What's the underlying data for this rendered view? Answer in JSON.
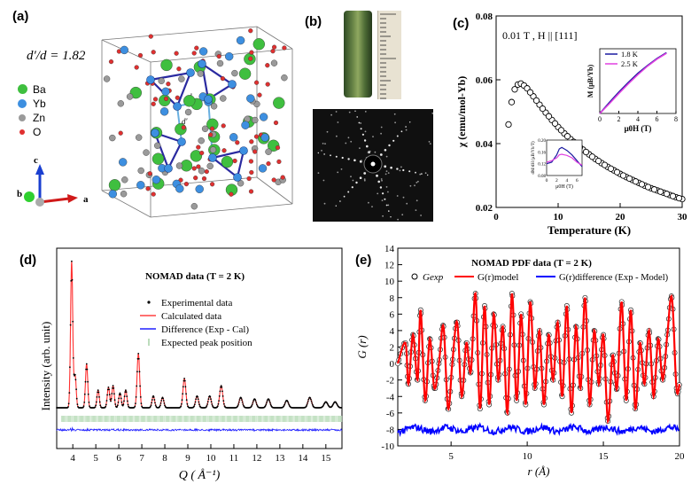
{
  "panels": {
    "a": {
      "label": "(a)",
      "ratio": "d′/d = 1.82",
      "legend": [
        {
          "name": "Ba",
          "color": "#3fbf3f"
        },
        {
          "name": "Yb",
          "color": "#3d8fe0"
        },
        {
          "name": "Zn",
          "color": "#9a9a9a"
        },
        {
          "name": "O",
          "color": "#e03030"
        }
      ],
      "axes": {
        "c": "c",
        "b": "b",
        "a": "a"
      },
      "bond_labels": {
        "d": "d",
        "dprime": "d′"
      }
    },
    "b": {
      "label": "(b)"
    },
    "c": {
      "label": "(c)"
    },
    "d": {
      "label": "(d)"
    },
    "e": {
      "label": "(e)"
    }
  },
  "chart_data": [
    {
      "id": "c-main",
      "type": "scatter",
      "annotation": "0.01 T , H || [111]",
      "xlabel": "Temperature (K)",
      "ylabel": "χ (emu/mol-Yb)",
      "xlim": [
        0,
        30
      ],
      "ylim": [
        0.02,
        0.08
      ],
      "xticks": [
        "0",
        "10",
        "20",
        "30"
      ],
      "yticks": [
        "0.02",
        "0.04",
        "0.06",
        "0.08"
      ],
      "x": [
        2.0,
        2.5,
        3.0,
        3.5,
        4.0,
        4.5,
        5,
        6,
        7,
        8,
        9,
        10,
        11,
        12,
        13,
        14,
        15,
        16,
        17,
        18,
        19,
        20,
        21,
        22,
        23,
        24,
        25,
        26,
        27,
        28,
        29,
        30
      ],
      "y": [
        0.046,
        0.053,
        0.057,
        0.0585,
        0.0588,
        0.0582,
        0.0573,
        0.0548,
        0.0522,
        0.0497,
        0.0474,
        0.0452,
        0.0432,
        0.0414,
        0.0397,
        0.0381,
        0.0366,
        0.0352,
        0.0339,
        0.0327,
        0.0316,
        0.0305,
        0.0295,
        0.0286,
        0.0277,
        0.0268,
        0.026,
        0.0253,
        0.0246,
        0.0239,
        0.0232,
        0.0226
      ]
    },
    {
      "id": "c-inset-mh",
      "type": "line",
      "xlabel": "μ0H (T)",
      "ylabel": "M (μB/Yb)",
      "xlim": [
        0,
        8
      ],
      "ylim": [
        0,
        1.0
      ],
      "xticks": [
        "0",
        "2",
        "4",
        "6",
        "8"
      ],
      "series": [
        {
          "name": "1.8 K",
          "color": "#1a1aa0",
          "x": [
            0,
            1,
            2,
            3,
            4,
            5,
            6,
            7
          ],
          "y": [
            0,
            0.17,
            0.33,
            0.48,
            0.62,
            0.74,
            0.85,
            0.94
          ]
        },
        {
          "name": "2.5 K",
          "color": "#e040e0",
          "x": [
            0,
            1,
            2,
            3,
            4,
            5,
            6,
            7
          ],
          "y": [
            0,
            0.15,
            0.31,
            0.46,
            0.6,
            0.73,
            0.84,
            0.93
          ]
        }
      ]
    },
    {
      "id": "c-inset-dmdh",
      "type": "line",
      "xlabel": "μ0H (T)",
      "ylabel": "dM/dH (μB/Yb/T)",
      "xlim": [
        0,
        7
      ],
      "ylim": [
        0.08,
        0.2
      ],
      "xticks": [
        "0",
        "2",
        "4",
        "6"
      ],
      "yticks": [
        "0.20",
        "0.16",
        "0.12",
        "0.08"
      ],
      "series": [
        {
          "name": "1.8 K",
          "color": "#1a1aa0",
          "x": [
            0,
            1,
            2,
            2.5,
            3,
            3.5,
            4,
            5,
            6,
            7
          ],
          "y": [
            0.12,
            0.125,
            0.15,
            0.17,
            0.175,
            0.17,
            0.165,
            0.15,
            0.13,
            0.11
          ]
        },
        {
          "name": "2.5 K",
          "color": "#e040e0",
          "x": [
            0,
            1,
            2,
            2.5,
            3,
            3.5,
            4,
            5,
            6,
            7
          ],
          "y": [
            0.125,
            0.13,
            0.14,
            0.15,
            0.152,
            0.15,
            0.148,
            0.14,
            0.125,
            0.115
          ]
        }
      ]
    },
    {
      "id": "d",
      "type": "line",
      "title": "NOMAD data (T = 2 K)",
      "xlabel": "Q ( Å⁻¹)",
      "ylabel": "Intensity (arb. unit)",
      "xlim": [
        3.3,
        15.7
      ],
      "xticks": [
        "4",
        "5",
        "6",
        "7",
        "8",
        "9",
        "10",
        "11",
        "12",
        "13",
        "14",
        "15"
      ],
      "legend": [
        "Experimental data",
        "Calculated data",
        "Difference (Exp - Cal)",
        "Expected peak position"
      ],
      "peaks": [
        {
          "q": 3.95,
          "h": 1.0
        },
        {
          "q": 4.1,
          "h": 0.22
        },
        {
          "q": 4.6,
          "h": 0.3
        },
        {
          "q": 5.1,
          "h": 0.12
        },
        {
          "q": 5.55,
          "h": 0.14
        },
        {
          "q": 5.75,
          "h": 0.15
        },
        {
          "q": 6.05,
          "h": 0.1
        },
        {
          "q": 6.3,
          "h": 0.12
        },
        {
          "q": 6.85,
          "h": 0.37
        },
        {
          "q": 7.5,
          "h": 0.08
        },
        {
          "q": 7.9,
          "h": 0.07
        },
        {
          "q": 8.85,
          "h": 0.2
        },
        {
          "q": 9.4,
          "h": 0.08
        },
        {
          "q": 9.95,
          "h": 0.08
        },
        {
          "q": 10.45,
          "h": 0.15
        },
        {
          "q": 11.3,
          "h": 0.07
        },
        {
          "q": 11.9,
          "h": 0.06
        },
        {
          "q": 12.5,
          "h": 0.06
        },
        {
          "q": 13.3,
          "h": 0.05
        },
        {
          "q": 14.3,
          "h": 0.07
        },
        {
          "q": 15.0,
          "h": 0.04
        },
        {
          "q": 15.4,
          "h": 0.04
        }
      ]
    },
    {
      "id": "e",
      "type": "line",
      "title": "NOMAD PDF data (T = 2 K)",
      "xlabel": "r (Å)",
      "ylabel": "G (r)",
      "xlim": [
        1.5,
        20
      ],
      "ylim": [
        -10,
        14
      ],
      "xticks": [
        "5",
        "10",
        "15",
        "20"
      ],
      "yticks": [
        "-10",
        "-8",
        "-6",
        "-4",
        "-2",
        "0",
        "2",
        "4",
        "6",
        "8",
        "10",
        "12",
        "14"
      ],
      "legend": [
        {
          "name": "Gexp",
          "color": "#000000"
        },
        {
          "name": "G(r)model",
          "color": "#ff0000"
        },
        {
          "name": "G(r)difference (Exp - Model)",
          "color": "#0000ff"
        }
      ],
      "x": [
        1.5,
        2.0,
        2.2,
        2.5,
        2.8,
        3.0,
        3.3,
        3.6,
        3.9,
        4.2,
        4.5,
        4.8,
        5.1,
        5.4,
        5.7,
        6.0,
        6.3,
        6.6,
        6.9,
        7.2,
        7.5,
        7.8,
        8.1,
        8.4,
        8.7,
        9.0,
        9.3,
        9.6,
        9.9,
        10.2,
        10.5,
        10.8,
        11.1,
        11.4,
        11.7,
        12.0,
        12.3,
        12.6,
        12.9,
        13.2,
        13.5,
        13.8,
        14.1,
        14.4,
        14.7,
        15.0,
        15.3,
        15.6,
        15.9,
        16.2,
        16.5,
        16.8,
        17.1,
        17.4,
        17.7,
        18.0,
        18.3,
        18.6,
        18.9,
        19.2,
        19.5,
        19.8,
        20.0
      ],
      "y": [
        0,
        2.5,
        -2.5,
        3.5,
        -2,
        6.5,
        -4.5,
        3,
        -3,
        0,
        4.5,
        -5.5,
        0.5,
        5,
        -4,
        2.5,
        -1,
        8.5,
        -5.5,
        7,
        -5,
        6,
        -2,
        4.5,
        -6,
        8.5,
        -4.5,
        6,
        -5,
        7.5,
        -3,
        4,
        -5,
        3.5,
        -2,
        5,
        -4,
        7,
        -6,
        4.5,
        -3,
        8,
        -5,
        4,
        -2.5,
        3.5,
        -7,
        1,
        -3,
        7.5,
        -4.5,
        6.5,
        -5.5,
        2.5,
        -2.5,
        4,
        -4,
        3,
        -2,
        3.5,
        8,
        -3,
        -2.5
      ],
      "diff_level": -8
    }
  ]
}
